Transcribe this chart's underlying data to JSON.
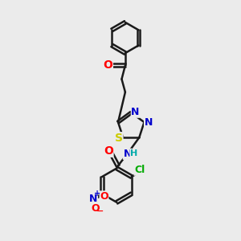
{
  "bg_color": "#ebebeb",
  "bond_color": "#1a1a1a",
  "bond_width": 1.8,
  "atom_colors": {
    "O": "#ff0000",
    "N": "#0000cc",
    "S": "#cccc00",
    "Cl": "#00aa00",
    "NH": "#00aaaa",
    "C": "#1a1a1a"
  },
  "font_size": 9,
  "fig_size": [
    3.0,
    3.0
  ],
  "dpi": 100
}
